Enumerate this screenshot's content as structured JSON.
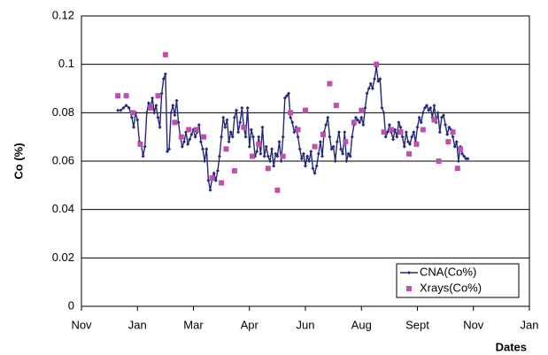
{
  "chart_data": {
    "type": "line-scatter",
    "y_label": "Co (%)",
    "x_label": "Dates",
    "xlim": [
      0,
      480
    ],
    "xticks": [
      {
        "value": 0,
        "label": "Nov"
      },
      {
        "value": 60,
        "label": "Jan"
      },
      {
        "value": 120,
        "label": "Mar"
      },
      {
        "value": 180,
        "label": "Apr"
      },
      {
        "value": 240,
        "label": "Jun"
      },
      {
        "value": 300,
        "label": "Aug"
      },
      {
        "value": 360,
        "label": "Sept"
      },
      {
        "value": 420,
        "label": "Nov"
      },
      {
        "value": 480,
        "label": "Jan"
      }
    ],
    "ylim": [
      0,
      0.12
    ],
    "yticks": [
      0,
      0.02,
      0.04,
      0.06,
      0.08,
      0.1,
      0.12
    ],
    "grid": true,
    "legend": "lower right",
    "series": [
      {
        "name": "CNA(Co%)",
        "kind": "line",
        "color": "#23287a",
        "x": [
          39,
          42,
          45,
          48,
          51,
          54,
          56,
          58,
          60,
          62,
          64,
          66,
          68,
          70,
          72,
          74,
          76,
          78,
          80,
          82,
          84,
          86,
          88,
          90,
          92,
          94,
          96,
          98,
          100,
          102,
          104,
          106,
          108,
          110,
          112,
          114,
          116,
          118,
          120,
          122,
          124,
          126,
          128,
          130,
          132,
          134,
          136,
          138,
          140,
          142,
          144,
          146,
          148,
          150,
          152,
          154,
          156,
          158,
          160,
          162,
          164,
          166,
          168,
          170,
          172,
          174,
          176,
          178,
          180,
          182,
          184,
          186,
          188,
          190,
          192,
          194,
          196,
          198,
          200,
          202,
          204,
          206,
          208,
          210,
          212,
          214,
          216,
          218,
          220,
          222,
          224,
          226,
          228,
          230,
          232,
          234,
          236,
          238,
          240,
          242,
          244,
          246,
          248,
          250,
          252,
          254,
          256,
          258,
          260,
          262,
          264,
          266,
          268,
          270,
          272,
          274,
          276,
          278,
          280,
          282,
          284,
          286,
          288,
          290,
          292,
          294,
          296,
          298,
          300,
          302,
          304,
          306,
          308,
          310,
          312,
          314,
          316,
          318,
          320,
          322,
          324,
          326,
          328,
          330,
          332,
          334,
          336,
          338,
          340,
          342,
          344,
          346,
          348,
          350,
          352,
          354,
          356,
          358,
          360,
          362,
          364,
          366,
          368,
          370,
          372,
          374,
          376,
          378,
          380,
          382,
          384,
          386,
          388,
          390,
          392,
          394,
          396,
          398,
          400,
          402,
          404,
          406,
          408,
          410,
          412,
          414
        ],
        "values": [
          0.081,
          0.081,
          0.082,
          0.083,
          0.082,
          0.078,
          0.074,
          0.08,
          0.077,
          0.068,
          0.067,
          0.062,
          0.066,
          0.08,
          0.084,
          0.082,
          0.086,
          0.08,
          0.083,
          0.078,
          0.074,
          0.088,
          0.094,
          0.096,
          0.064,
          0.065,
          0.08,
          0.083,
          0.079,
          0.085,
          0.076,
          0.07,
          0.066,
          0.068,
          0.072,
          0.067,
          0.069,
          0.071,
          0.073,
          0.07,
          0.072,
          0.075,
          0.068,
          0.065,
          0.06,
          0.065,
          0.052,
          0.048,
          0.053,
          0.055,
          0.052,
          0.056,
          0.062,
          0.07,
          0.078,
          0.074,
          0.077,
          0.068,
          0.072,
          0.07,
          0.078,
          0.081,
          0.072,
          0.076,
          0.082,
          0.074,
          0.07,
          0.082,
          0.066,
          0.073,
          0.07,
          0.062,
          0.064,
          0.07,
          0.063,
          0.074,
          0.062,
          0.066,
          0.062,
          0.06,
          0.065,
          0.058,
          0.063,
          0.062,
          0.068,
          0.06,
          0.07,
          0.086,
          0.087,
          0.088,
          0.078,
          0.076,
          0.072,
          0.074,
          0.07,
          0.065,
          0.061,
          0.063,
          0.058,
          0.062,
          0.06,
          0.064,
          0.057,
          0.055,
          0.058,
          0.063,
          0.068,
          0.062,
          0.072,
          0.075,
          0.078,
          0.07,
          0.065,
          0.066,
          0.06,
          0.068,
          0.072,
          0.065,
          0.063,
          0.072,
          0.06,
          0.063,
          0.062,
          0.07,
          0.075,
          0.078,
          0.077,
          0.076,
          0.078,
          0.075,
          0.082,
          0.088,
          0.09,
          0.092,
          0.09,
          0.094,
          0.099,
          0.093,
          0.094,
          0.082,
          0.08,
          0.07,
          0.072,
          0.075,
          0.072,
          0.069,
          0.073,
          0.07,
          0.076,
          0.074,
          0.07,
          0.066,
          0.072,
          0.068,
          0.067,
          0.07,
          0.072,
          0.068,
          0.074,
          0.078,
          0.076,
          0.08,
          0.082,
          0.083,
          0.081,
          0.082,
          0.078,
          0.083,
          0.076,
          0.08,
          0.072,
          0.078,
          0.079,
          0.075,
          0.071,
          0.074,
          0.073,
          0.07,
          0.066,
          0.068,
          0.06,
          0.066,
          0.063,
          0.062,
          0.061,
          0.061
        ]
      },
      {
        "name": "Xrays(Co%)",
        "kind": "scatter",
        "color": "#c050b0",
        "x": [
          39,
          48,
          55,
          63,
          74,
          82,
          90,
          100,
          107,
          115,
          123,
          131,
          140,
          150,
          155,
          164,
          174,
          183,
          190,
          200,
          210,
          216,
          224,
          232,
          240,
          250,
          259,
          266,
          273,
          283,
          292,
          300,
          316,
          324,
          332,
          342,
          351,
          359,
          366,
          378,
          383,
          393,
          398,
          403,
          406
        ],
        "values": [
          0.087,
          0.087,
          0.08,
          0.067,
          0.082,
          0.087,
          0.104,
          0.076,
          0.07,
          0.073,
          0.073,
          0.07,
          0.053,
          0.051,
          0.065,
          0.056,
          0.074,
          0.062,
          0.067,
          0.057,
          0.048,
          0.062,
          0.08,
          0.073,
          0.081,
          0.066,
          0.071,
          0.092,
          0.083,
          0.068,
          0.076,
          0.081,
          0.1,
          0.072,
          0.073,
          0.072,
          0.063,
          0.067,
          0.073,
          0.077,
          0.06,
          0.068,
          0.072,
          0.057,
          0.065
        ]
      }
    ]
  }
}
